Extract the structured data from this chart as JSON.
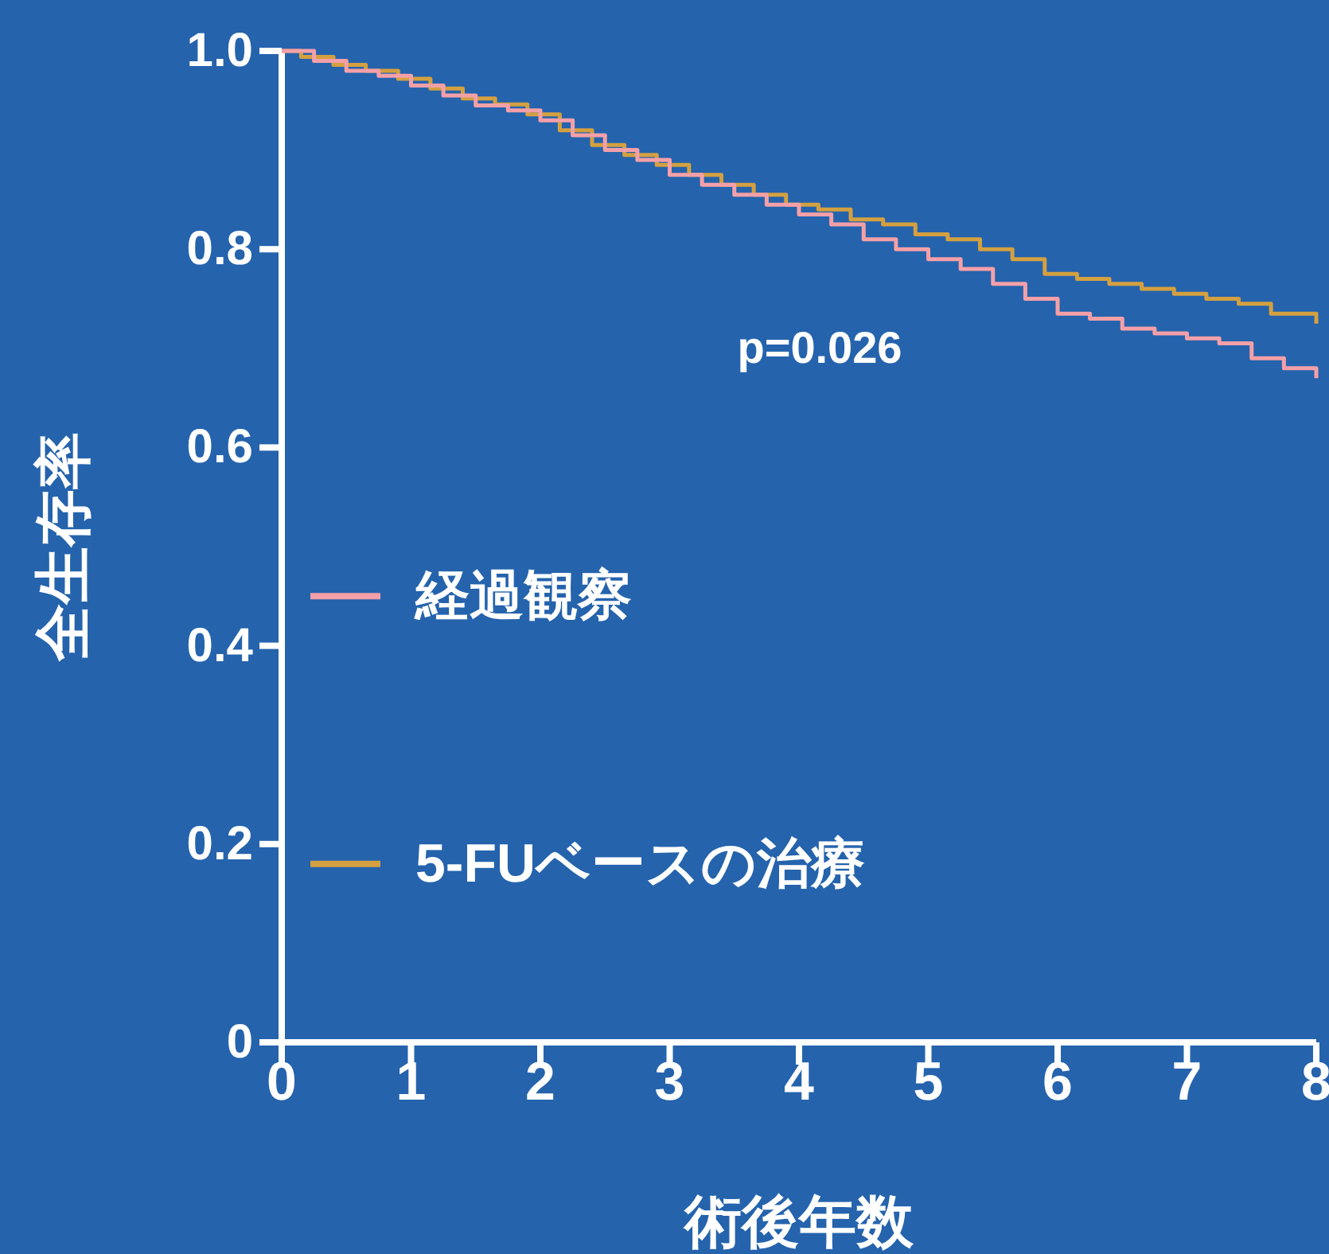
{
  "chart_data": {
    "type": "step",
    "xlabel": "術後年数",
    "ylabel": "全生存率",
    "x": [
      0,
      0.25,
      0.5,
      0.75,
      1,
      1.25,
      1.5,
      1.75,
      2,
      2.25,
      2.5,
      2.75,
      3,
      3.25,
      3.5,
      3.75,
      4,
      4.25,
      4.5,
      4.75,
      5,
      5.25,
      5.5,
      5.75,
      6,
      6.25,
      6.5,
      6.75,
      7,
      7.25,
      7.5,
      7.75,
      8
    ],
    "series": [
      {
        "name": "経過観察",
        "color": "#f4a0a8",
        "values": [
          1.0,
          0.99,
          0.98,
          0.975,
          0.965,
          0.955,
          0.945,
          0.94,
          0.93,
          0.915,
          0.9,
          0.89,
          0.875,
          0.865,
          0.855,
          0.845,
          0.835,
          0.825,
          0.81,
          0.8,
          0.79,
          0.78,
          0.765,
          0.75,
          0.735,
          0.73,
          0.72,
          0.715,
          0.71,
          0.705,
          0.69,
          0.68,
          0.67
        ]
      },
      {
        "name": "5-FUベースの治療",
        "color": "#d4a040",
        "x": [
          0,
          0.15,
          0.4,
          0.65,
          0.9,
          1.15,
          1.4,
          1.65,
          1.9,
          2.15,
          2.4,
          2.65,
          2.9,
          3.15,
          3.4,
          3.65,
          3.9,
          4.15,
          4.4,
          4.65,
          4.9,
          5.15,
          5.4,
          5.65,
          5.9,
          6.15,
          6.4,
          6.65,
          6.9,
          7.15,
          7.4,
          7.65,
          8
        ],
        "values": [
          1.0,
          0.994,
          0.986,
          0.98,
          0.972,
          0.962,
          0.952,
          0.946,
          0.936,
          0.92,
          0.905,
          0.895,
          0.885,
          0.875,
          0.865,
          0.855,
          0.845,
          0.84,
          0.83,
          0.825,
          0.815,
          0.81,
          0.8,
          0.79,
          0.775,
          0.77,
          0.765,
          0.76,
          0.755,
          0.75,
          0.745,
          0.735,
          0.725
        ]
      }
    ],
    "xlim": [
      0,
      8
    ],
    "xticks": [
      0,
      1,
      2,
      3,
      4,
      5,
      6,
      7,
      8
    ],
    "ylim": [
      0,
      1
    ],
    "yticks": [
      0,
      {
        "value": 0.2,
        "label": "0.2"
      },
      {
        "value": 0.4,
        "label": "0.4"
      },
      {
        "value": 0.6,
        "label": "0.6"
      },
      {
        "value": 0.8,
        "label": "0.8"
      },
      {
        "value": 1,
        "label": "1.0"
      }
    ],
    "annotations": [
      "p=0.026"
    ],
    "legend": "left"
  }
}
